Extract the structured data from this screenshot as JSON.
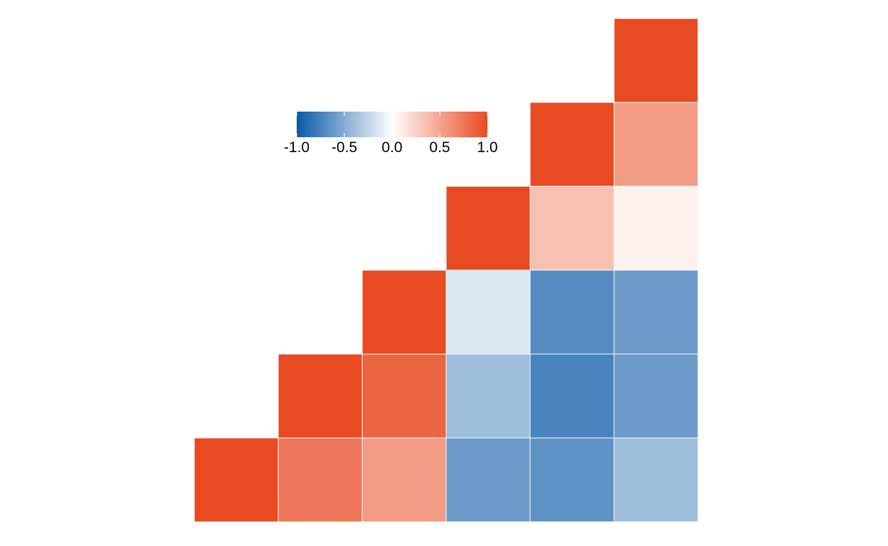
{
  "chart_data": {
    "type": "heatmap",
    "title": "",
    "subtitle": "",
    "layout": "lower-triangle correlation matrix",
    "row_labels": [],
    "col_labels": [],
    "values": [
      [
        1.0,
        null,
        null,
        null,
        null,
        null
      ],
      [
        0.75,
        1.0,
        null,
        null,
        null,
        null
      ],
      [
        0.55,
        0.85,
        1.0,
        null,
        null,
        null
      ],
      [
        -0.6,
        -0.4,
        -0.15,
        1.0,
        null,
        null
      ],
      [
        -0.65,
        -0.75,
        -0.7,
        0.35,
        1.0,
        null
      ],
      [
        -0.4,
        -0.6,
        -0.6,
        0.08,
        0.55,
        1.0
      ]
    ],
    "color_scale": {
      "min": -1.0,
      "max": 1.0,
      "low_color": "#0a59a6",
      "mid_color": "#ffffff",
      "high_color": "#e84a22",
      "ticks": [
        -1.0,
        -0.5,
        0.0,
        0.5,
        1.0
      ],
      "tick_labels": [
        "-1.0",
        "-0.5",
        "0.0",
        "0.5",
        "1.0"
      ],
      "legend_placement": "inside top-left"
    },
    "grid": false
  }
}
